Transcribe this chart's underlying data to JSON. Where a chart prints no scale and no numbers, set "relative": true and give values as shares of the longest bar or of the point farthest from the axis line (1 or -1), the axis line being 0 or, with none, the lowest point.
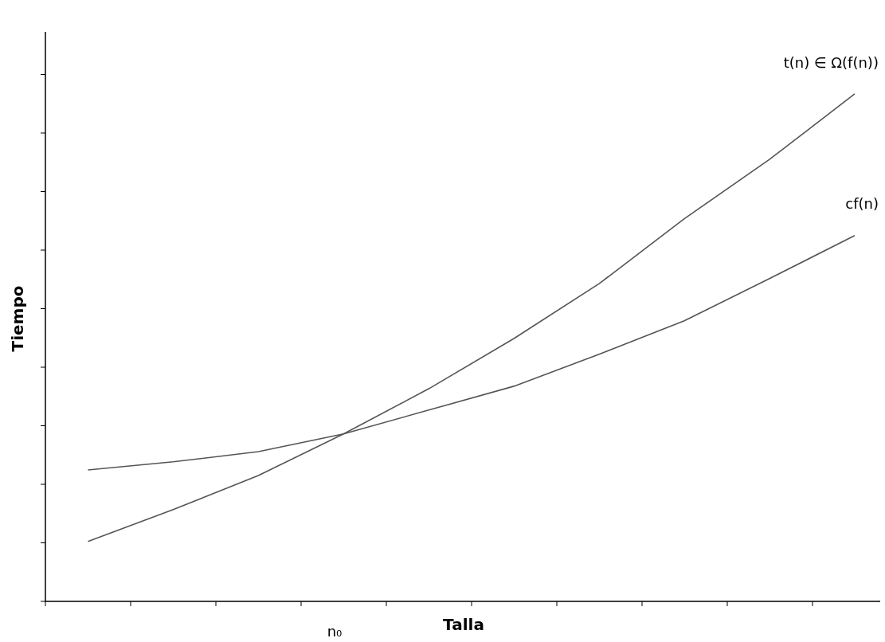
{
  "chart_data": {
    "type": "line",
    "relative": true,
    "xlabel": "Talla",
    "ylabel": "Tiempo",
    "categories": [
      null,
      null,
      null,
      null,
      null,
      null,
      null,
      null,
      null,
      null
    ],
    "series": [
      {
        "name": "t(n) ∈ Ω(f(n))",
        "color": "#555555",
        "values": [
          0.118,
          0.181,
          0.248,
          0.33,
          0.419,
          0.518,
          0.626,
          0.754,
          0.871,
          1
        ]
      },
      {
        "name": "cf(n)",
        "color": "#555555",
        "values": [
          0.259,
          0.275,
          0.295,
          0.33,
          0.377,
          0.424,
          0.487,
          0.553,
          0.636,
          0.721
        ]
      }
    ],
    "annotations": [
      "n₀"
    ],
    "marker": "none",
    "line_style": "solid",
    "legend": false
  }
}
